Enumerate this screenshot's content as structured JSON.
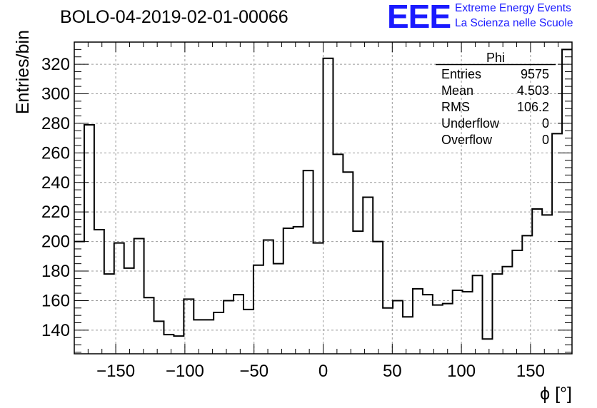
{
  "header": {
    "title": "BOLO-04-2019-02-01-00066",
    "logo_text": "EEE",
    "logo_line1": "Extreme Energy Events",
    "logo_line2": "La Scienza nelle Scuole",
    "accent_color": "#1a1aff"
  },
  "chart_data": {
    "type": "bar",
    "style": "step-histogram",
    "title": "BOLO-04-2019-02-01-00066",
    "xlabel": "ϕ [°]",
    "ylabel": "Entries/bin",
    "xlim": [
      -180,
      180
    ],
    "ylim": [
      124,
      335
    ],
    "bin_width": 7.2,
    "xticks": [
      -150,
      -100,
      -50,
      0,
      50,
      100,
      150
    ],
    "yticks": [
      140,
      160,
      180,
      200,
      220,
      240,
      260,
      280,
      300,
      320
    ],
    "grid": true,
    "bin_edges_start": -180,
    "values": [
      200,
      279,
      208,
      178,
      199,
      182,
      202,
      162,
      146,
      137,
      136,
      161,
      147,
      147,
      152,
      160,
      164,
      154,
      184,
      201,
      185,
      209,
      210,
      248,
      199,
      324,
      259,
      247,
      207,
      230,
      200,
      155,
      160,
      149,
      168,
      164,
      157,
      158,
      167,
      166,
      177,
      134,
      178,
      183,
      194,
      204,
      222,
      218,
      273,
      330
    ]
  },
  "stats": {
    "name": "Phi",
    "rows": [
      {
        "label": "Entries",
        "value": "9575"
      },
      {
        "label": "Mean",
        "value": "4.503"
      },
      {
        "label": "RMS",
        "value": "106.2"
      },
      {
        "label": "Underflow",
        "value": "0"
      },
      {
        "label": "Overflow",
        "value": "0"
      }
    ]
  }
}
